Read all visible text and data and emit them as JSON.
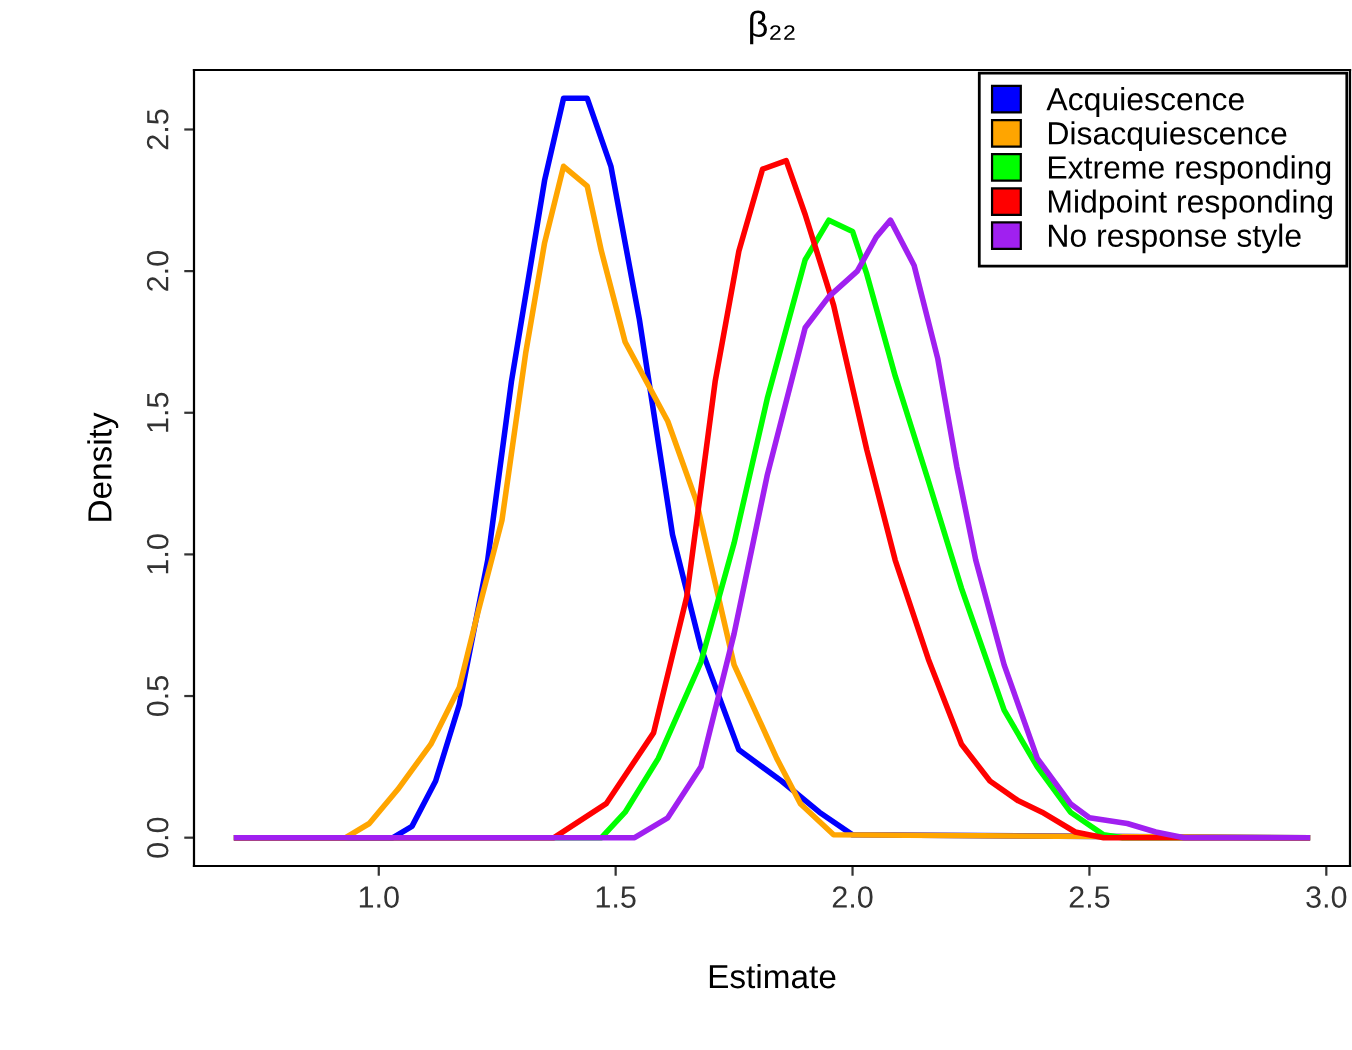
{
  "chart_data": {
    "type": "line",
    "title": "β₂₂",
    "xlabel": "Estimate",
    "ylabel": "Density",
    "xlim": [
      0.61,
      3.05
    ],
    "ylim": [
      -0.1,
      2.71
    ],
    "xticks": [
      {
        "value": 1,
        "label": "1.0"
      },
      {
        "value": 1.5,
        "label": "1.5"
      },
      {
        "value": 2,
        "label": "2.0"
      },
      {
        "value": 2.5,
        "label": "2.5"
      },
      {
        "value": 3,
        "label": "3.0"
      }
    ],
    "yticks": [
      {
        "value": 0,
        "label": "0.0"
      },
      {
        "value": 0.5,
        "label": "0.5"
      },
      {
        "value": 1,
        "label": "1.0"
      },
      {
        "value": 1.5,
        "label": "1.5"
      },
      {
        "value": 2,
        "label": "2.0"
      },
      {
        "value": 2.5,
        "label": "2.5"
      }
    ],
    "grid": false,
    "legend": "top right",
    "marker": "none",
    "line_style": "solid",
    "series": [
      {
        "name": "Acquiescence",
        "color": "#0000ff",
        "x": [
          0.7,
          1.03,
          1.07,
          1.12,
          1.17,
          1.23,
          1.28,
          1.35,
          1.39,
          1.44,
          1.49,
          1.55,
          1.62,
          1.68,
          1.76,
          1.85,
          1.93,
          2.0,
          2.96
        ],
        "values": [
          0,
          0,
          0.04,
          0.2,
          0.47,
          0.98,
          1.61,
          2.32,
          2.61,
          2.61,
          2.37,
          1.83,
          1.07,
          0.67,
          0.31,
          0.2,
          0.09,
          0.01,
          0
        ]
      },
      {
        "name": "Disacquiescence",
        "color": "#ffa500",
        "x": [
          0.7,
          0.93,
          0.98,
          1.04,
          1.11,
          1.17,
          1.21,
          1.26,
          1.31,
          1.35,
          1.39,
          1.44,
          1.47,
          1.52,
          1.61,
          1.67,
          1.75,
          1.84,
          1.89,
          1.96,
          2.96
        ],
        "values": [
          0,
          0,
          0.05,
          0.17,
          0.33,
          0.53,
          0.8,
          1.12,
          1.71,
          2.1,
          2.37,
          2.3,
          2.07,
          1.75,
          1.47,
          1.19,
          0.61,
          0.28,
          0.12,
          0.01,
          0
        ]
      },
      {
        "name": "Extreme responding",
        "color": "#00ff00",
        "x": [
          0.7,
          1.47,
          1.52,
          1.59,
          1.68,
          1.75,
          1.82,
          1.9,
          1.95,
          2.0,
          2.03,
          2.09,
          2.16,
          2.23,
          2.32,
          2.39,
          2.46,
          2.53,
          2.57,
          2.96
        ],
        "values": [
          0,
          0,
          0.09,
          0.28,
          0.62,
          1.04,
          1.55,
          2.04,
          2.18,
          2.14,
          1.99,
          1.63,
          1.26,
          0.88,
          0.45,
          0.25,
          0.09,
          0.01,
          0,
          0
        ]
      },
      {
        "name": "Midpoint responding",
        "color": "#ff0000",
        "x": [
          0.7,
          1.37,
          1.48,
          1.58,
          1.65,
          1.71,
          1.76,
          1.81,
          1.86,
          1.9,
          1.96,
          2.03,
          2.09,
          2.16,
          2.23,
          2.29,
          2.35,
          2.4,
          2.47,
          2.53,
          2.96
        ],
        "values": [
          0,
          0,
          0.12,
          0.37,
          0.85,
          1.61,
          2.07,
          2.36,
          2.39,
          2.2,
          1.88,
          1.37,
          0.98,
          0.63,
          0.33,
          0.2,
          0.13,
          0.09,
          0.02,
          0,
          0
        ]
      },
      {
        "name": "No response style",
        "color": "#a020f0",
        "x": [
          0.7,
          1.54,
          1.61,
          1.68,
          1.75,
          1.82,
          1.9,
          1.95,
          2.01,
          2.05,
          2.08,
          2.13,
          2.18,
          2.22,
          2.26,
          2.32,
          2.39,
          2.46,
          2.5,
          2.58,
          2.64,
          2.7,
          2.96
        ],
        "values": [
          0,
          0,
          0.07,
          0.25,
          0.72,
          1.28,
          1.8,
          1.91,
          2.0,
          2.12,
          2.18,
          2.02,
          1.69,
          1.31,
          0.98,
          0.61,
          0.28,
          0.12,
          0.07,
          0.05,
          0.02,
          0,
          0
        ]
      }
    ]
  }
}
